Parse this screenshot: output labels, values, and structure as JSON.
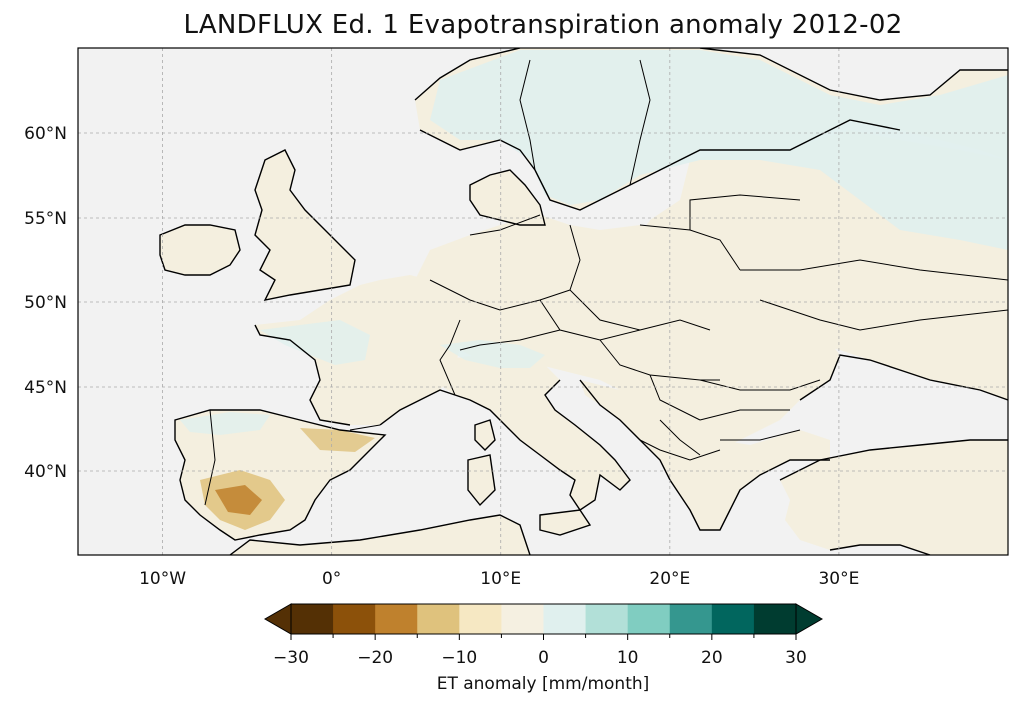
{
  "title": "LANDFLUX Ed. 1 Evapotranspiration anomaly 2012-02",
  "map": {
    "extent": {
      "lon": [
        -15,
        40
      ],
      "lat": [
        35,
        65
      ]
    },
    "lat_ticks": [
      {
        "value": 60,
        "label": "60°N"
      },
      {
        "value": 55,
        "label": "55°N"
      },
      {
        "value": 50,
        "label": "50°N"
      },
      {
        "value": 45,
        "label": "45°N"
      },
      {
        "value": 40,
        "label": "40°N"
      }
    ],
    "lon_ticks": [
      {
        "value": -10,
        "label": "10°W"
      },
      {
        "value": 0,
        "label": "0°"
      },
      {
        "value": 10,
        "label": "10°E"
      },
      {
        "value": 20,
        "label": "20°E"
      },
      {
        "value": 30,
        "label": "30°E"
      }
    ],
    "gridlines": true,
    "ocean_color": "#f2f2f2",
    "land_color": "#f4efdf"
  },
  "colorbar": {
    "label": "ET anomaly [mm/month]",
    "min": -30,
    "max": 30,
    "step": 5,
    "extend": "both",
    "tick_labels": [
      "−30",
      "−20",
      "−10",
      "0",
      "10",
      "20",
      "30"
    ],
    "tick_values": [
      -30,
      -20,
      -10,
      0,
      10,
      20,
      30
    ],
    "colors": [
      "#543005",
      "#8c510a",
      "#bf812d",
      "#dfc27d",
      "#f6e8c3",
      "#f5f0e1",
      "#e0f0ee",
      "#b2e0d8",
      "#80cdc1",
      "#35978f",
      "#01665e",
      "#003c30"
    ],
    "extend_low_color": "#543005",
    "extend_high_color": "#003c30"
  }
}
